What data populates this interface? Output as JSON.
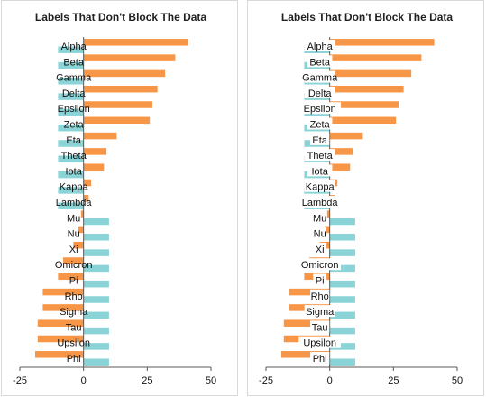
{
  "chart_data": [
    {
      "type": "bar",
      "orientation": "horizontal",
      "title": "Labels That Don't Block The Data",
      "categories": [
        "Alpha",
        "Beta",
        "Gamma",
        "Delta",
        "Epsilon",
        "Zeta",
        "Eta",
        "Theta",
        "Iota",
        "Kappa",
        "Lambda",
        "Mu",
        "Nu",
        "Xi",
        "Omicron",
        "Pi",
        "Rho",
        "Sigma",
        "Tau",
        "Upsilon",
        "Phi"
      ],
      "series": [
        {
          "color": "#f79646",
          "values": [
            41,
            36,
            32,
            29,
            27,
            26,
            13,
            9,
            8,
            3,
            2,
            -1,
            -2,
            -4,
            -8,
            -10,
            -16,
            -16,
            -18,
            -18,
            -19
          ]
        },
        {
          "color": "#8ad4d7",
          "values": [
            -10,
            -10,
            -10,
            -10,
            -10,
            -10,
            -10,
            -10,
            -10,
            -10,
            -10,
            10,
            10,
            10,
            10,
            10,
            10,
            10,
            10,
            10,
            10
          ]
        }
      ],
      "xlim": [
        -25,
        50
      ],
      "xticks": [
        -25,
        0,
        25,
        50
      ],
      "xlabel": "",
      "ylabel": "",
      "grid": false,
      "legend": "none"
    },
    {
      "type": "bar",
      "orientation": "horizontal",
      "title": "Labels That Don't Block The Data",
      "categories": [
        "Alpha",
        "Beta",
        "Gamma",
        "Delta",
        "Epsilon",
        "Zeta",
        "Eta",
        "Theta",
        "Iota",
        "Kappa",
        "Lambda",
        "Mu",
        "Nu",
        "Xi",
        "Omicron",
        "Pi",
        "Rho",
        "Sigma",
        "Tau",
        "Upsilon",
        "Phi"
      ],
      "series": [
        {
          "color": "#f79646",
          "values": [
            41,
            36,
            32,
            29,
            27,
            26,
            13,
            9,
            8,
            3,
            2,
            -1,
            -2,
            -4,
            -8,
            -10,
            -16,
            -16,
            -18,
            -18,
            -19
          ]
        },
        {
          "color": "#8ad4d7",
          "values": [
            -10,
            -10,
            -10,
            -10,
            -10,
            -10,
            -10,
            -10,
            -10,
            -10,
            -10,
            10,
            10,
            10,
            10,
            10,
            10,
            10,
            10,
            10,
            10
          ]
        }
      ],
      "xlim": [
        -25,
        50
      ],
      "xticks": [
        -25,
        0,
        25,
        50
      ],
      "xlabel": "",
      "ylabel": "",
      "grid": false,
      "legend": "none"
    }
  ]
}
